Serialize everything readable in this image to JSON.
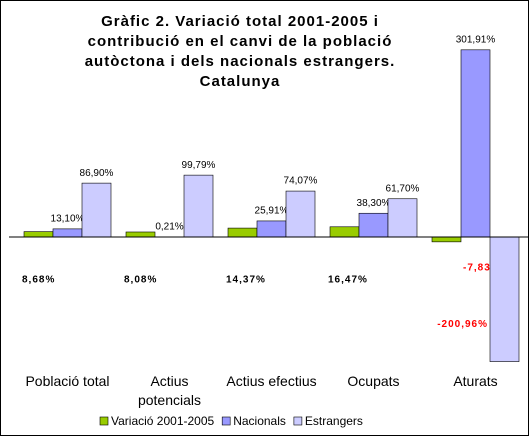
{
  "chart_data": {
    "type": "bar",
    "title": [
      "Gràfic 2. Variació total 2001-2005 i",
      "contribució en el canvi de la població",
      "autòctona i dels nacionals estrangers.",
      "Catalunya"
    ],
    "categories": [
      "Població total",
      "Actius potencials",
      "Actius efectius",
      "Ocupats",
      "Aturats"
    ],
    "series": [
      {
        "name": "Variació 2001-2005",
        "color": "#99cc00",
        "values": [
          8.68,
          8.08,
          14.37,
          16.47,
          -7.83
        ],
        "value_labels": [
          "8,68%",
          "8,08%",
          "14,37%",
          "16,47%",
          "-7,83%"
        ]
      },
      {
        "name": "Nacionals",
        "color": "#9999ff",
        "values": [
          13.1,
          0.21,
          25.91,
          38.3,
          301.91
        ],
        "value_labels": [
          "13,10%",
          "0,21%",
          "25,91%",
          "38,30%",
          "301,91%"
        ]
      },
      {
        "name": "Estrangers",
        "color": "#ccccff",
        "values": [
          86.9,
          99.79,
          74.07,
          61.7,
          -200.96
        ],
        "value_labels": [
          "86,90%",
          "99,79%",
          "74,07%",
          "61,70%",
          "-200,96%"
        ]
      }
    ],
    "ylim": [
      -210,
      310
    ]
  }
}
